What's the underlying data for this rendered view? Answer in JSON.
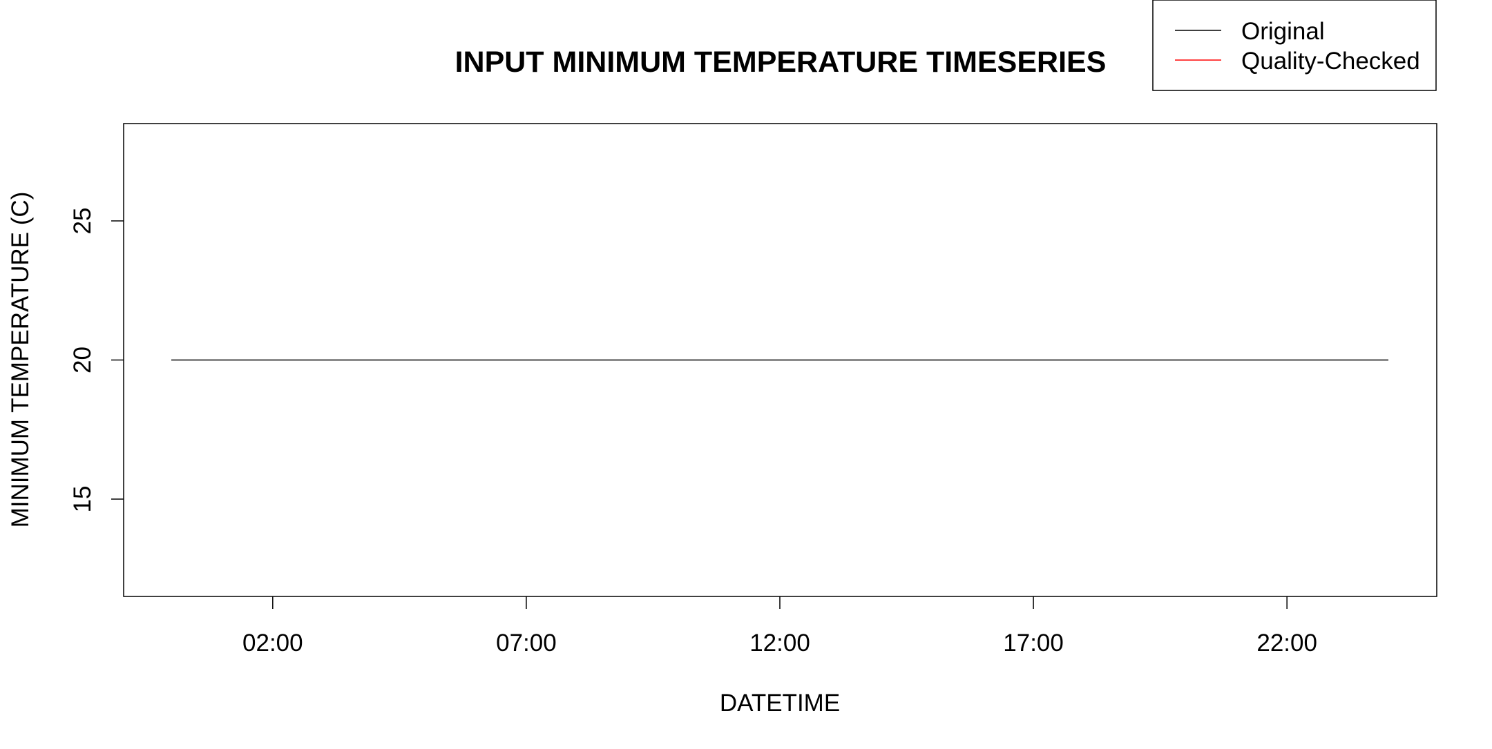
{
  "chart_data": {
    "type": "line",
    "title": "INPUT MINIMUM TEMPERATURE TIMESERIES",
    "xlabel": "DATETIME",
    "ylabel": "MINIMUM TEMPERATURE (C)",
    "x_type": "time",
    "xlim": [
      "00:00",
      "24:00"
    ],
    "ylim": [
      11.5,
      28.5
    ],
    "x_ticks": [
      "02:00",
      "07:00",
      "12:00",
      "17:00",
      "22:00"
    ],
    "y_ticks": [
      15,
      20,
      25
    ],
    "grid": false,
    "legend_position": "top-right",
    "series": [
      {
        "name": "Original",
        "color": "#000000",
        "x": [
          "00:00",
          "01:00",
          "02:00",
          "03:00",
          "04:00",
          "05:00",
          "06:00",
          "07:00",
          "08:00",
          "09:00",
          "10:00",
          "11:00",
          "12:00",
          "13:00",
          "14:00",
          "15:00",
          "16:00",
          "17:00",
          "18:00",
          "19:00",
          "20:00",
          "21:00",
          "22:00",
          "23:00",
          "24:00"
        ],
        "values": [
          20,
          20,
          20,
          20,
          20,
          20,
          20,
          20,
          20,
          20,
          20,
          20,
          20,
          20,
          20,
          20,
          20,
          20,
          20,
          20,
          20,
          20,
          20,
          20,
          20
        ]
      },
      {
        "name": "Quality-Checked",
        "color": "#ff0000",
        "x": [],
        "values": []
      }
    ]
  }
}
